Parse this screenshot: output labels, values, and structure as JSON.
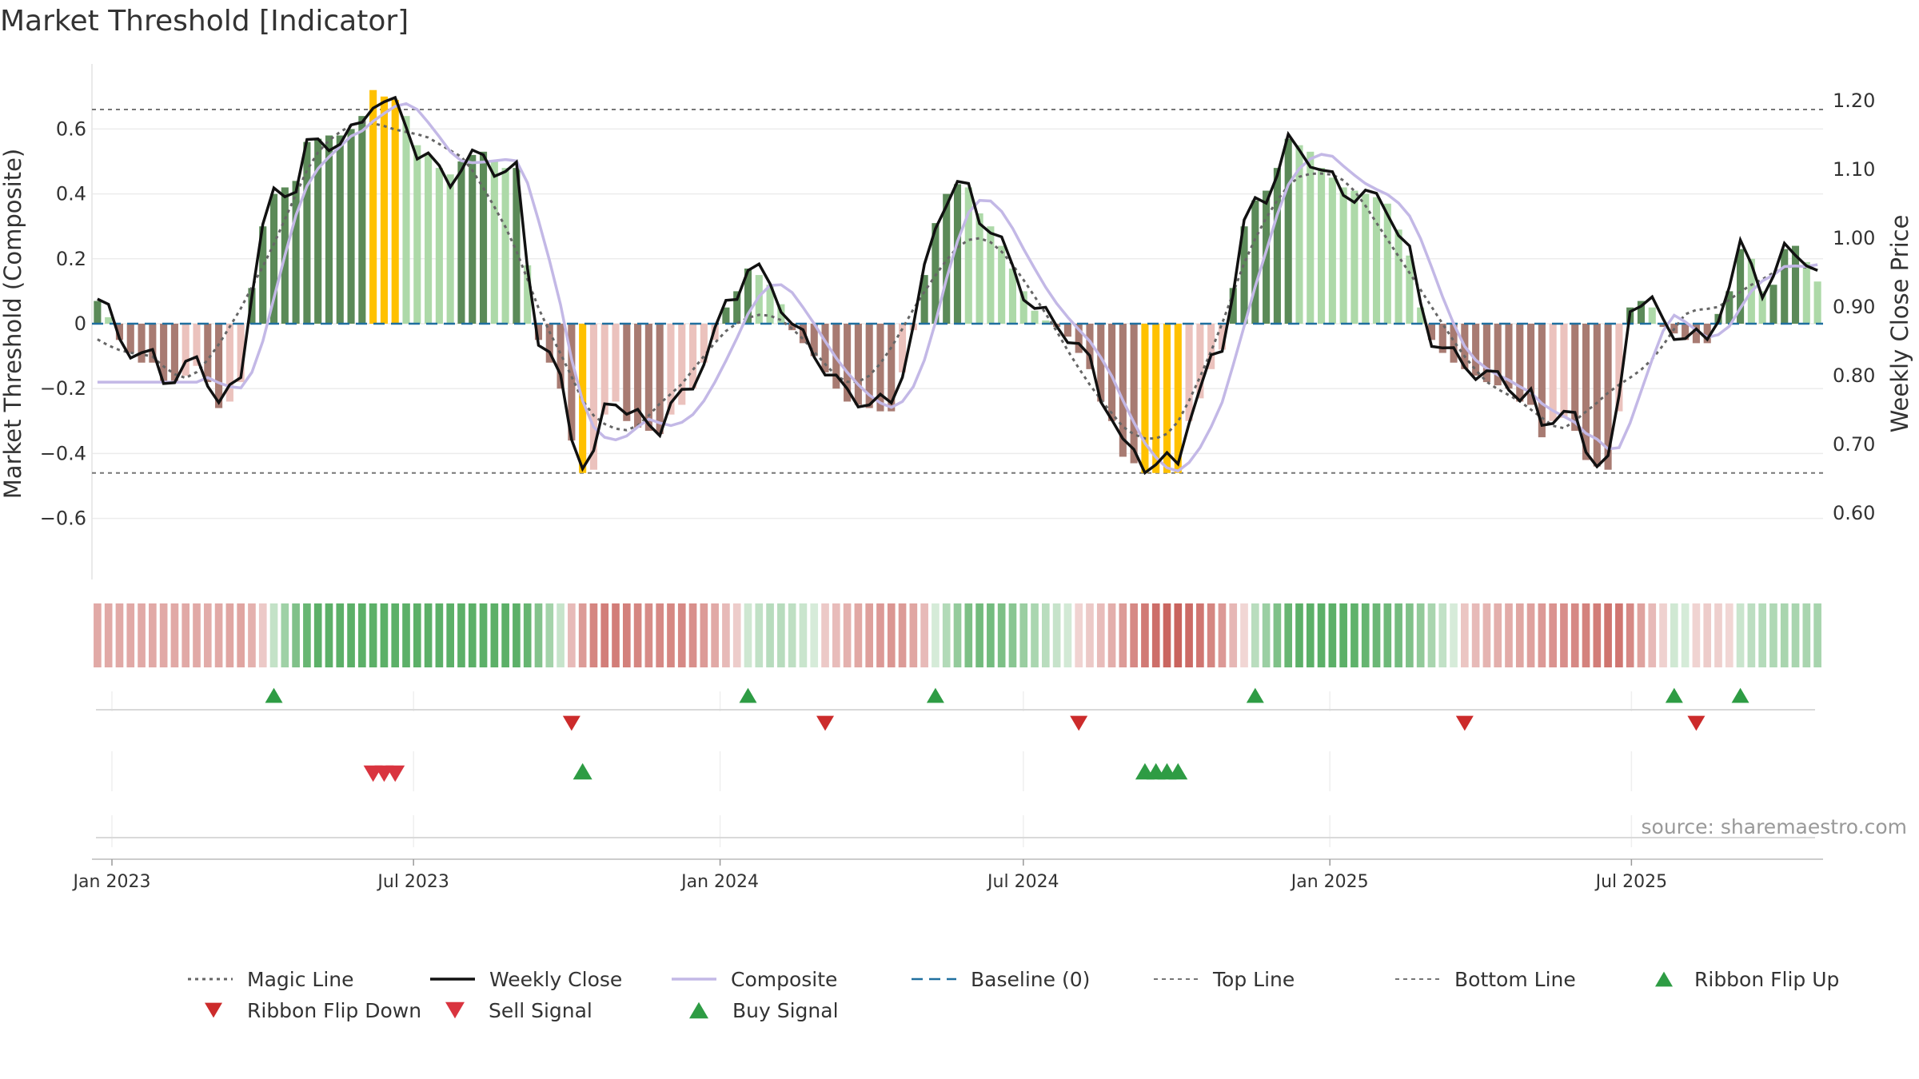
{
  "chart_data": {
    "type": "bar",
    "title": "Market Threshold [Indicator]",
    "ylabel_left": "Market Threshold (Composite)",
    "ylabel_right": "Weekly Close Price",
    "source": "source: sharemaestro.com",
    "ylim_left": [
      -0.8,
      0.8
    ],
    "ylim_right": [
      0.55,
      1.2
    ],
    "y_ticks_left": [
      "0.6",
      "0.4",
      "0.2",
      "0",
      "−0.2",
      "−0.4",
      "−0.6"
    ],
    "y_ticks_right": [
      "1.20",
      "1.10",
      "1.00",
      "0.90",
      "0.80",
      "0.70",
      "0.60"
    ],
    "x_ticks": [
      "Jan 2023",
      "Jul 2023",
      "Jan 2024",
      "Jul 2024",
      "Jan 2025",
      "Jul 2025"
    ],
    "x_range": [
      "2022-12-20",
      "2025-10-24"
    ],
    "top_line": 0.66,
    "bottom_line": -0.46,
    "baseline": 0,
    "grid": true,
    "legend_position": "bottom",
    "legend": [
      "Magic Line",
      "Weekly Close",
      "Composite",
      "Baseline (0)",
      "Top Line",
      "Bottom Line",
      "Ribbon Flip Up",
      "Ribbon Flip Down",
      "Sell Signal",
      "Buy Signal"
    ],
    "colors": {
      "strong_up": "#5b8a58",
      "weak_up": "#add9a8",
      "strong_down": "#a87b72",
      "weak_down": "#ebc2bd",
      "extreme": "#ffc100",
      "composite": "#c3b8e6",
      "close": "#111111",
      "magic": "#666666",
      "baseline": "#1f6f9f",
      "buy": "#2e9c44",
      "sell": "#d9343f",
      "flip_down": "#cc2b2b"
    },
    "composite_bars": [
      0.07,
      0.02,
      -0.05,
      -0.09,
      -0.12,
      -0.12,
      -0.18,
      -0.18,
      -0.16,
      -0.13,
      -0.18,
      -0.26,
      -0.24,
      -0.18,
      0.11,
      0.3,
      0.4,
      0.42,
      0.44,
      0.56,
      0.57,
      0.58,
      0.58,
      0.6,
      0.64,
      0.72,
      0.7,
      0.69,
      0.64,
      0.55,
      0.52,
      0.48,
      0.46,
      0.5,
      0.52,
      0.53,
      0.5,
      0.48,
      0.48,
      0.18,
      -0.05,
      -0.12,
      -0.2,
      -0.36,
      -0.46,
      -0.45,
      -0.28,
      -0.24,
      -0.3,
      -0.32,
      -0.33,
      -0.34,
      -0.28,
      -0.25,
      -0.2,
      -0.12,
      -0.05,
      0.05,
      0.1,
      0.17,
      0.15,
      0.12,
      0.06,
      -0.02,
      -0.06,
      -0.1,
      -0.15,
      -0.2,
      -0.24,
      -0.25,
      -0.26,
      -0.27,
      -0.27,
      -0.15,
      -0.02,
      0.15,
      0.31,
      0.4,
      0.43,
      0.42,
      0.34,
      0.3,
      0.24,
      0.17,
      0.1,
      0.04,
      0.01,
      -0.01,
      -0.04,
      -0.09,
      -0.14,
      -0.24,
      -0.3,
      -0.41,
      -0.43,
      -0.46,
      -0.46,
      -0.46,
      -0.46,
      -0.3,
      -0.23,
      -0.14,
      -0.08,
      0.11,
      0.3,
      0.38,
      0.41,
      0.48,
      0.57,
      0.55,
      0.53,
      0.48,
      0.45,
      0.42,
      0.41,
      0.4,
      0.39,
      0.37,
      0.29,
      0.21,
      0.05,
      -0.05,
      -0.09,
      -0.12,
      -0.14,
      -0.16,
      -0.18,
      -0.19,
      -0.2,
      -0.24,
      -0.25,
      -0.35,
      -0.3,
      -0.29,
      -0.33,
      -0.42,
      -0.44,
      -0.45,
      -0.27,
      0.05,
      0.07,
      0.05,
      -0.01,
      -0.03,
      -0.05,
      -0.06,
      -0.06,
      0.03,
      0.1,
      0.23,
      0.2,
      0.1,
      0.12,
      0.23,
      0.24,
      0.19,
      0.13
    ]
  }
}
